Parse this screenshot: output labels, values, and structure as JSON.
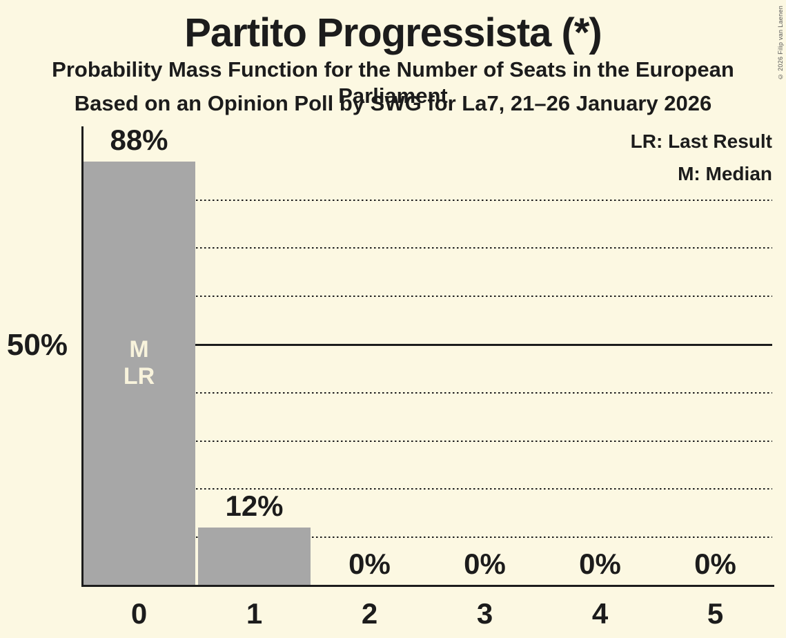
{
  "title": "Partito Progressista (*)",
  "subtitle": "Probability Mass Function for the Number of Seats in the European Parliament",
  "poll_info": "Based on an Opinion Poll by SWG for La7, 21–26 January 2026",
  "copyright": "© 2026 Filip van Laenen",
  "legend": {
    "last_result": "LR: Last Result",
    "median": "M: Median"
  },
  "y_axis_label": "50%",
  "annotations": {
    "median": "M",
    "last_result": "LR"
  },
  "colors": {
    "background": "#FCF8E2",
    "bar": "#A7A7A7",
    "text": "#1C1C1C",
    "bar_annotation_text": "#F8F3DC"
  },
  "chart_data": {
    "type": "bar",
    "title": "Partito Progressista (*)",
    "categories": [
      "0",
      "1",
      "2",
      "3",
      "4",
      "5"
    ],
    "values": [
      88,
      12,
      0,
      0,
      0,
      0
    ],
    "value_labels": [
      "88%",
      "12%",
      "0%",
      "0%",
      "0%",
      "0%"
    ],
    "ylim": [
      0,
      100
    ],
    "y_gridlines_pct": [
      10,
      20,
      30,
      40,
      50,
      60,
      70,
      80
    ],
    "solid_gridline_pct": 50,
    "grid_style": "dotted",
    "legend_position": "top-right",
    "median_category": "0",
    "last_result_category": "0"
  }
}
